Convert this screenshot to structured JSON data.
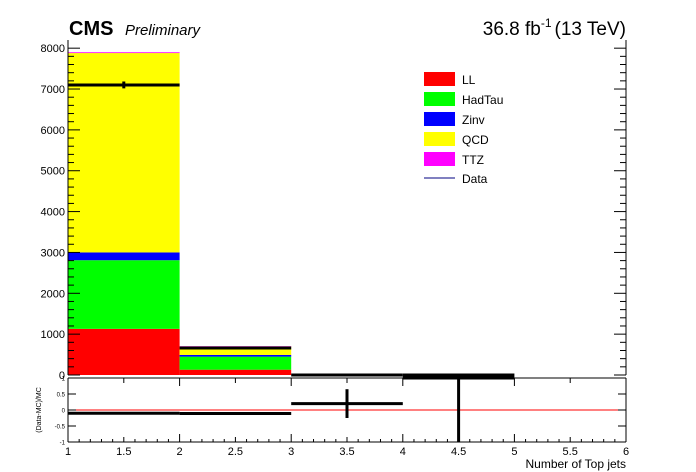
{
  "header": {
    "experiment": "CMS",
    "status": "Preliminary",
    "luminosity": "36.8 fb",
    "lumi_exponent": "-1",
    "energy": "(13 TeV)"
  },
  "chart_data": [
    {
      "type": "bar",
      "stacked": true,
      "bin_edges": [
        1,
        2,
        3,
        4,
        5,
        6
      ],
      "ylim": [
        0,
        8200
      ],
      "yticks": [
        0,
        1000,
        2000,
        3000,
        4000,
        5000,
        6000,
        7000,
        8000
      ],
      "legend_placement": "top-right",
      "series": [
        {
          "name": "LL",
          "color": "#ff0000",
          "values": [
            1130,
            130,
            0,
            0,
            0
          ]
        },
        {
          "name": "HadTau",
          "color": "#00ff00",
          "values": [
            1680,
            320,
            0,
            0,
            0
          ]
        },
        {
          "name": "Zinv",
          "color": "#0000ff",
          "values": [
            190,
            40,
            0,
            0,
            0
          ]
        },
        {
          "name": "QCD",
          "color": "#ffff00",
          "values": [
            4880,
            210,
            0,
            0,
            0
          ]
        },
        {
          "name": "TTZ",
          "color": "#ff00ff",
          "values": [
            20,
            4,
            0,
            0,
            0
          ]
        }
      ],
      "data": {
        "name": "Data",
        "color": "#000080",
        "x": [
          1.5,
          2.5,
          3.5,
          4.5
        ],
        "y": [
          7100,
          660,
          0,
          0
        ],
        "yerr": [
          84,
          26,
          0,
          0
        ]
      }
    },
    {
      "type": "scatter",
      "ylabel": "(Data-MC)/MC",
      "ylim": [
        -1,
        1
      ],
      "yticks": [
        -1,
        -0.5,
        0,
        0.5,
        1
      ],
      "xlim": [
        1,
        6
      ],
      "xticks": [
        1,
        1.5,
        2,
        2.5,
        3,
        3.5,
        4,
        4.5,
        5,
        5.5,
        6
      ],
      "xlabel": "Number of Top jets",
      "reference_line": {
        "y": 0,
        "color": "#ff0000"
      },
      "x": [
        1.5,
        2.5,
        3.5,
        4.5
      ],
      "y": [
        -0.1,
        -0.11,
        0.2,
        1.0
      ],
      "yerr": [
        0.01,
        0.04,
        0.45,
        2.2
      ]
    }
  ]
}
